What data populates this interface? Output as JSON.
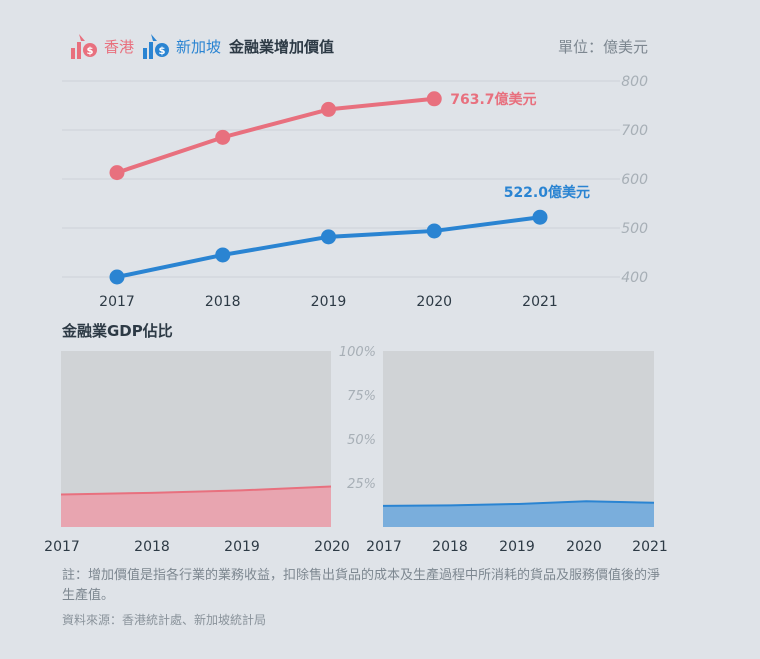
{
  "legend": {
    "hk_label": "香港",
    "sg_label": "新加坡",
    "title": "金融業增加價值"
  },
  "unit_label": "單位：億美元",
  "subtitle": "金融業GDP佔比",
  "note": "註：增加價值是指各行業的業務收益，扣除售出貨品的成本及生產過程中所消耗的貨品及服務價值後的淨生產值。",
  "source": "資料來源：香港統計處、新加坡統計局",
  "colors": {
    "hk": "#e8707e",
    "sg": "#2a84d2",
    "hk_fill": "#e8a5b0",
    "sg_fill": "#7aaedc",
    "panel": "#d0d3d6",
    "grid": "#cdd2d7",
    "axis_text": "#a7afb6",
    "tick_text": "#2d3a45"
  },
  "chart_data": [
    {
      "type": "line",
      "title": "金融業增加價值",
      "ylabel": "單位：億美元",
      "categories": [
        "2017",
        "2018",
        "2019",
        "2020",
        "2021"
      ],
      "yticks": [
        400,
        500,
        600,
        700,
        800
      ],
      "ylim": [
        380,
        800
      ],
      "grid": true,
      "series": [
        {
          "name": "香港",
          "color": "#e8707e",
          "values": [
            613,
            685,
            742,
            763.7,
            null
          ],
          "end_label": "763.7億美元"
        },
        {
          "name": "新加坡",
          "color": "#2a84d2",
          "values": [
            400,
            445,
            482,
            494,
            522.0
          ],
          "end_label": "522.0億美元"
        }
      ]
    },
    {
      "type": "area",
      "title": "金融業GDP佔比",
      "series_name": "香港",
      "categories": [
        "2017",
        "2018",
        "2019",
        "2020"
      ],
      "values": [
        18.5,
        19.4,
        20.8,
        23.0
      ],
      "ylim": [
        0,
        100
      ],
      "yticks": [
        "25%",
        "50%",
        "75%",
        "100%"
      ],
      "color": "#e8a5b0"
    },
    {
      "type": "area",
      "title": "金融業GDP佔比",
      "series_name": "新加坡",
      "categories": [
        "2017",
        "2018",
        "2019",
        "2020",
        "2021"
      ],
      "values": [
        12.0,
        12.3,
        13.1,
        14.6,
        13.8
      ],
      "ylim": [
        0,
        100
      ],
      "color": "#7aaedc"
    }
  ]
}
